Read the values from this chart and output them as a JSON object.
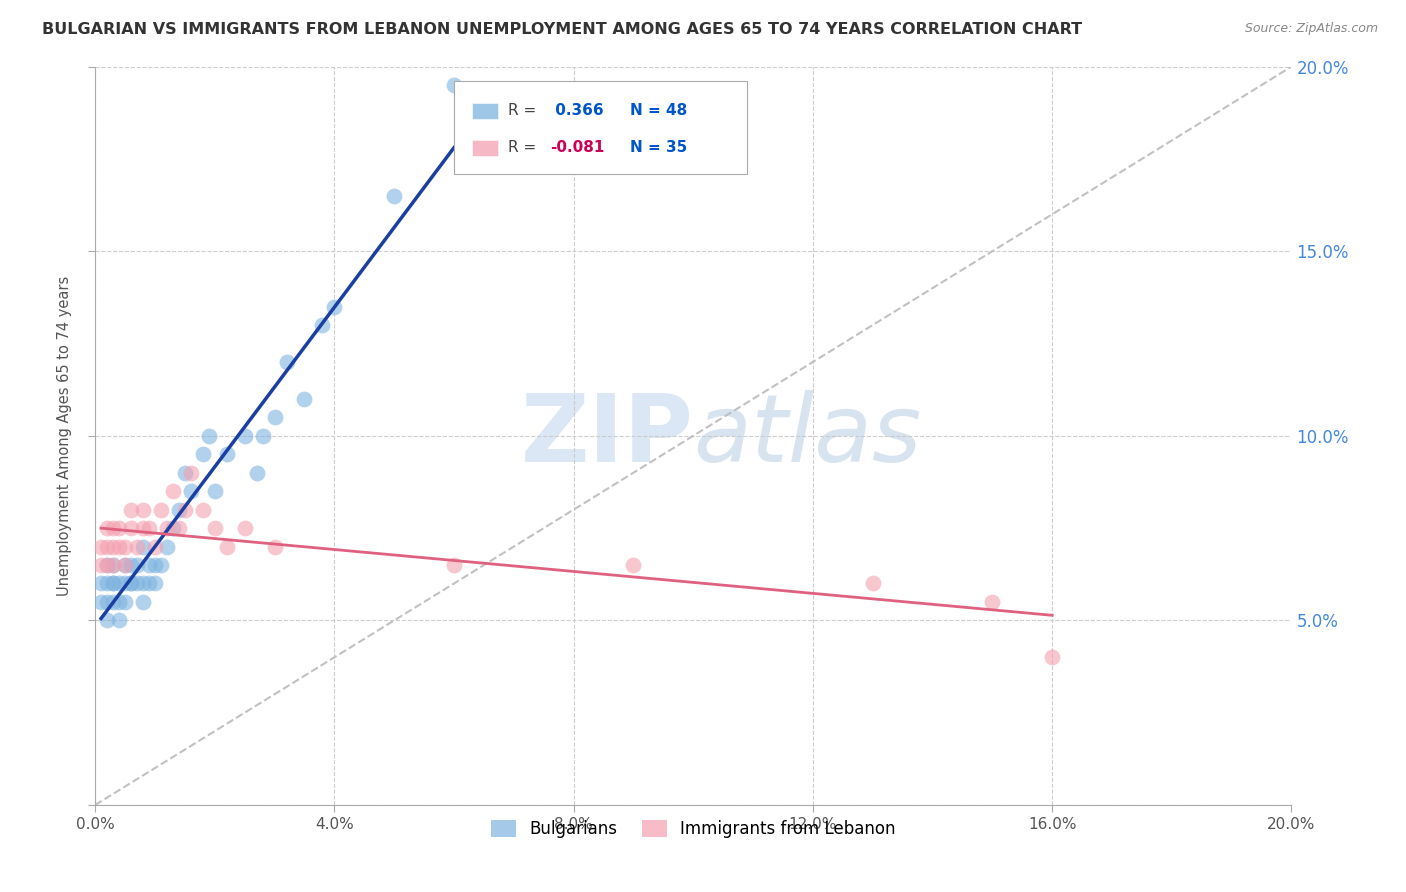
{
  "title": "BULGARIAN VS IMMIGRANTS FROM LEBANON UNEMPLOYMENT AMONG AGES 65 TO 74 YEARS CORRELATION CHART",
  "source": "Source: ZipAtlas.com",
  "ylabel": "Unemployment Among Ages 65 to 74 years",
  "xlim": [
    0.0,
    0.2
  ],
  "ylim": [
    0.0,
    0.2
  ],
  "xticks": [
    0.0,
    0.04,
    0.08,
    0.12,
    0.16,
    0.2
  ],
  "yticks_right": [
    0.05,
    0.1,
    0.15,
    0.2
  ],
  "ytick_labels_right": [
    "5.0%",
    "10.0%",
    "15.0%",
    "20.0%"
  ],
  "bg_color": "#ffffff",
  "grid_color": "#c8c8c8",
  "blue_color": "#7eb3e0",
  "pink_color": "#f4a0b0",
  "trendline_blue": "#1a3fa0",
  "trendline_pink": "#e06080",
  "dashed_line_color": "#bbbbbb",
  "bulgarians_x": [
    0.001,
    0.001,
    0.002,
    0.002,
    0.002,
    0.002,
    0.003,
    0.003,
    0.003,
    0.003,
    0.004,
    0.004,
    0.004,
    0.005,
    0.005,
    0.005,
    0.006,
    0.006,
    0.006,
    0.007,
    0.007,
    0.008,
    0.008,
    0.008,
    0.009,
    0.009,
    0.01,
    0.01,
    0.011,
    0.012,
    0.013,
    0.014,
    0.015,
    0.016,
    0.018,
    0.019,
    0.02,
    0.022,
    0.025,
    0.027,
    0.028,
    0.03,
    0.032,
    0.035,
    0.038,
    0.04,
    0.05,
    0.06
  ],
  "bulgarians_y": [
    0.06,
    0.055,
    0.065,
    0.05,
    0.06,
    0.055,
    0.06,
    0.065,
    0.055,
    0.06,
    0.06,
    0.055,
    0.05,
    0.065,
    0.06,
    0.055,
    0.06,
    0.065,
    0.06,
    0.065,
    0.06,
    0.06,
    0.07,
    0.055,
    0.065,
    0.06,
    0.065,
    0.06,
    0.065,
    0.07,
    0.075,
    0.08,
    0.09,
    0.085,
    0.095,
    0.1,
    0.085,
    0.095,
    0.1,
    0.09,
    0.1,
    0.105,
    0.12,
    0.11,
    0.13,
    0.135,
    0.165,
    0.195
  ],
  "lebanon_x": [
    0.001,
    0.001,
    0.002,
    0.002,
    0.002,
    0.003,
    0.003,
    0.003,
    0.004,
    0.004,
    0.005,
    0.005,
    0.006,
    0.006,
    0.007,
    0.008,
    0.008,
    0.009,
    0.01,
    0.011,
    0.012,
    0.013,
    0.014,
    0.015,
    0.016,
    0.018,
    0.02,
    0.022,
    0.025,
    0.03,
    0.06,
    0.09,
    0.13,
    0.15,
    0.16
  ],
  "lebanon_y": [
    0.065,
    0.07,
    0.065,
    0.07,
    0.075,
    0.065,
    0.07,
    0.075,
    0.07,
    0.075,
    0.065,
    0.07,
    0.075,
    0.08,
    0.07,
    0.075,
    0.08,
    0.075,
    0.07,
    0.08,
    0.075,
    0.085,
    0.075,
    0.08,
    0.09,
    0.08,
    0.075,
    0.07,
    0.075,
    0.07,
    0.065,
    0.065,
    0.06,
    0.055,
    0.04
  ],
  "legend_r1_prefix": "R = ",
  "legend_r1_value": " 0.366",
  "legend_r1_n": "N = 48",
  "legend_r2_prefix": "R = ",
  "legend_r2_value": "-0.081",
  "legend_r2_n": "N = 35",
  "r_value_color_blue": "#0055cc",
  "r_value_color_pink": "#cc0055",
  "n_color": "#0055cc"
}
